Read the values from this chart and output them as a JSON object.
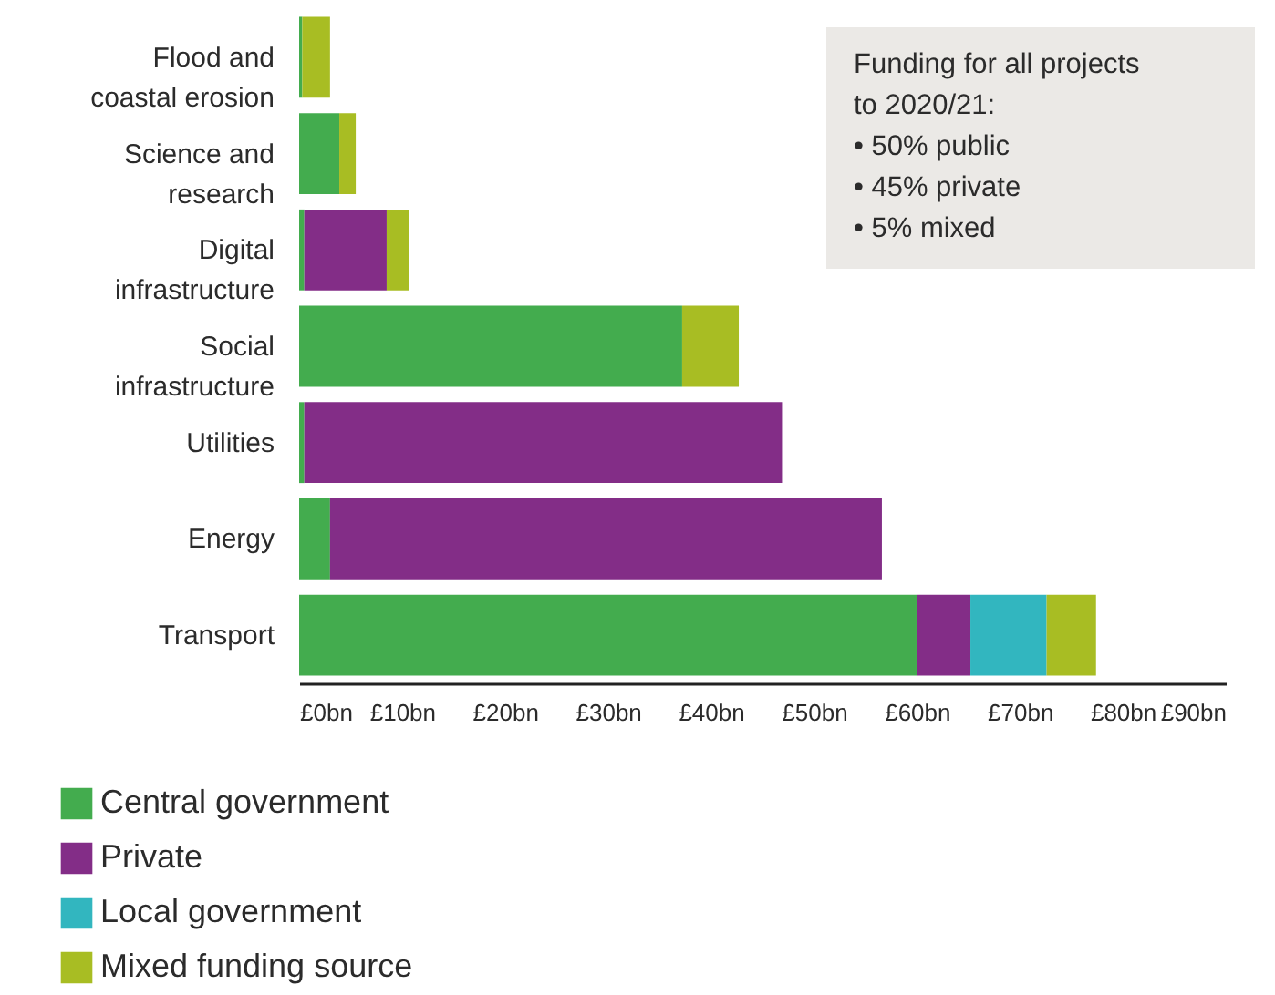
{
  "chart_data": {
    "type": "bar",
    "orientation": "horizontal",
    "stacked": true,
    "categories": [
      "Flood and coastal erosion",
      "Science and research",
      "Digital infrastructure",
      "Social infrastructure",
      "Utilities",
      "Energy",
      "Transport"
    ],
    "series": [
      {
        "name": "Central government",
        "color": "#43ac4e",
        "values": [
          0.3,
          3.9,
          0.5,
          37.2,
          0.5,
          3.0,
          60.0
        ]
      },
      {
        "name": "Private",
        "color": "#832d87",
        "values": [
          null,
          null,
          8.0,
          null,
          46.4,
          53.6,
          5.2
        ]
      },
      {
        "name": "Local government",
        "color": "#32b6bf",
        "values": [
          null,
          null,
          null,
          null,
          null,
          null,
          7.4
        ]
      },
      {
        "name": "Mixed funding source",
        "color": "#a8bd23",
        "values": [
          2.7,
          1.6,
          2.2,
          5.5,
          null,
          null,
          4.8
        ]
      }
    ],
    "xlim": [
      0,
      90
    ],
    "xticks": [
      {
        "value": 0,
        "label": "£0bn"
      },
      {
        "value": 10,
        "label": "£10bn"
      },
      {
        "value": 20,
        "label": "£20bn"
      },
      {
        "value": 30,
        "label": "£30bn"
      },
      {
        "value": 40,
        "label": "£40bn"
      },
      {
        "value": 50,
        "label": "£50bn"
      },
      {
        "value": 60,
        "label": "£60bn"
      },
      {
        "value": 70,
        "label": "£70bn"
      },
      {
        "value": 80,
        "label": "£80bn"
      },
      {
        "value": 90,
        "label": "£90bn"
      }
    ],
    "annotations": [
      "Funding for all projects to 2020/21:",
      "•  50% public",
      "•  45% private",
      "•  5% mixed"
    ],
    "legend": "bottom left",
    "grid": false
  }
}
